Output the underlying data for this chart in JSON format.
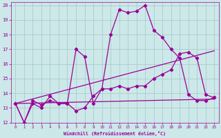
{
  "background_color": "#cce8e8",
  "grid_color": "#aacccc",
  "line_color": "#990099",
  "xlim": [
    -0.5,
    23.5
  ],
  "ylim": [
    12,
    20.2
  ],
  "yticks": [
    12,
    13,
    14,
    15,
    16,
    17,
    18,
    19,
    20
  ],
  "xticks": [
    0,
    1,
    2,
    3,
    4,
    5,
    6,
    7,
    8,
    9,
    10,
    11,
    12,
    13,
    14,
    15,
    16,
    17,
    18,
    19,
    20,
    21,
    22,
    23
  ],
  "xlabel": "Windchill (Refroidissement éolien,°C)",
  "line1_x": [
    0,
    1,
    2,
    3,
    4,
    5,
    6,
    7,
    8,
    9,
    10,
    11,
    12,
    13,
    14,
    15,
    16,
    17,
    18,
    19,
    20,
    21,
    22,
    23
  ],
  "line1_y": [
    13.3,
    12.0,
    13.3,
    13.0,
    13.8,
    13.3,
    13.3,
    12.8,
    13.0,
    13.8,
    14.3,
    18.0,
    19.7,
    19.5,
    19.6,
    20.0,
    18.3,
    17.8,
    17.0,
    16.4,
    13.9,
    13.5,
    13.5,
    13.7
  ],
  "line2_x": [
    0,
    1,
    2,
    3,
    4,
    5,
    6,
    7,
    8,
    9,
    10,
    11,
    12,
    13,
    14,
    15,
    16,
    17,
    18,
    19,
    20,
    21,
    22,
    23
  ],
  "line2_y": [
    13.3,
    12.0,
    13.5,
    13.2,
    13.5,
    13.3,
    13.3,
    17.0,
    16.5,
    13.3,
    14.3,
    14.3,
    14.5,
    14.3,
    14.5,
    14.5,
    15.0,
    15.3,
    15.6,
    16.7,
    16.8,
    16.4,
    13.9,
    13.7
  ],
  "trend1_x": [
    0,
    23
  ],
  "trend1_y": [
    13.3,
    13.6
  ],
  "trend2_x": [
    0,
    23
  ],
  "trend2_y": [
    13.3,
    16.9
  ]
}
